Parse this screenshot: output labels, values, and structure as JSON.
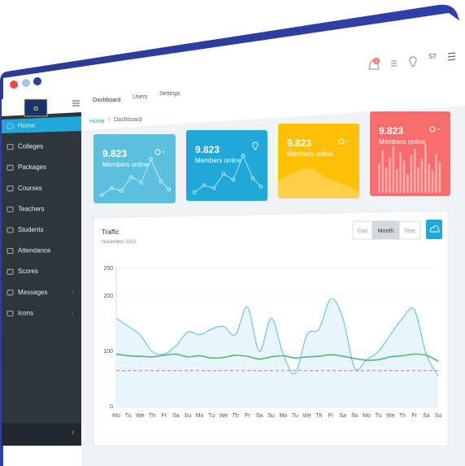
{
  "header": {
    "notification_count": "8",
    "user_initials": "ST",
    "top_tabs": [
      {
        "label": "Dashboard"
      },
      {
        "label": "Users"
      },
      {
        "label": "Settings"
      }
    ]
  },
  "breadcrumb": {
    "home": "Home",
    "separator": "/",
    "current": "Dashboard"
  },
  "sidebar": {
    "items": [
      {
        "label": "Home",
        "icon": "home-icon"
      },
      {
        "label": "Colleges",
        "icon": "college-icon"
      },
      {
        "label": "Packages",
        "icon": "package-icon"
      },
      {
        "label": "Courses",
        "icon": "course-icon"
      },
      {
        "label": "Teachers",
        "icon": "teacher-icon"
      },
      {
        "label": "Students",
        "icon": "students-icon"
      },
      {
        "label": "Attendance",
        "icon": "attendance-icon"
      },
      {
        "label": "Scores",
        "icon": "star-icon"
      },
      {
        "label": "Messages",
        "icon": "message-icon"
      },
      {
        "label": "Icons",
        "icon": "icons-icon"
      }
    ],
    "collapse_glyph": "‹"
  },
  "cards": [
    {
      "value": "9.823",
      "label": "Members online",
      "color": "#5bc0de"
    },
    {
      "value": "9.823",
      "label": "Members online",
      "color": "#1fa8d8"
    },
    {
      "value": "9.823",
      "label": "Members online",
      "color": "#ffc107"
    },
    {
      "value": "9.823",
      "label": "Members online",
      "color": "#f86c6b"
    }
  ],
  "traffic": {
    "title": "Traffic",
    "subtitle": "November 2015",
    "range_buttons": [
      "Day",
      "Month",
      "Year"
    ],
    "active_range": "Month"
  },
  "chart_data": {
    "type": "line",
    "title": "Traffic",
    "subtitle": "November 2015",
    "ylim": [
      0,
      250
    ],
    "yticks": [
      "0",
      "100",
      "200",
      "250"
    ],
    "categories": [
      "Mo",
      "Tu",
      "We",
      "Th",
      "Fr",
      "Sa",
      "Su",
      "Mo",
      "Tu",
      "We",
      "Th",
      "Fr",
      "Sa",
      "Su",
      "Mo",
      "Tu",
      "We",
      "Th",
      "Fr",
      "Sa",
      "Su",
      "Mo",
      "Tu",
      "We",
      "Th",
      "Fr",
      "Sa",
      "Su"
    ],
    "series": [
      {
        "values": [
          160,
          145,
          130,
          100,
          95,
          110,
          135,
          130,
          140,
          145,
          130,
          180,
          100,
          160,
          95,
          60,
          130,
          140,
          195,
          160,
          70,
          85,
          100,
          130,
          160,
          175,
          95,
          55
        ],
        "color": "#63c2de",
        "fill": "#e8f5fb"
      },
      {
        "values": [
          95,
          92,
          91,
          90,
          93,
          95,
          90,
          92,
          88,
          89,
          93,
          91,
          86,
          90,
          92,
          88,
          90,
          91,
          94,
          91,
          87,
          84,
          85,
          90,
          92,
          95,
          93,
          82
        ],
        "color": "#4dbd74"
      },
      {
        "values": [
          65,
          65,
          65,
          65,
          65,
          65,
          65,
          65,
          65,
          65,
          65,
          65,
          65,
          65,
          65,
          65,
          65,
          65,
          65,
          65,
          65,
          65,
          65,
          65,
          65,
          65,
          65,
          65
        ],
        "color": "#f86c6b",
        "dashed": true
      }
    ]
  }
}
